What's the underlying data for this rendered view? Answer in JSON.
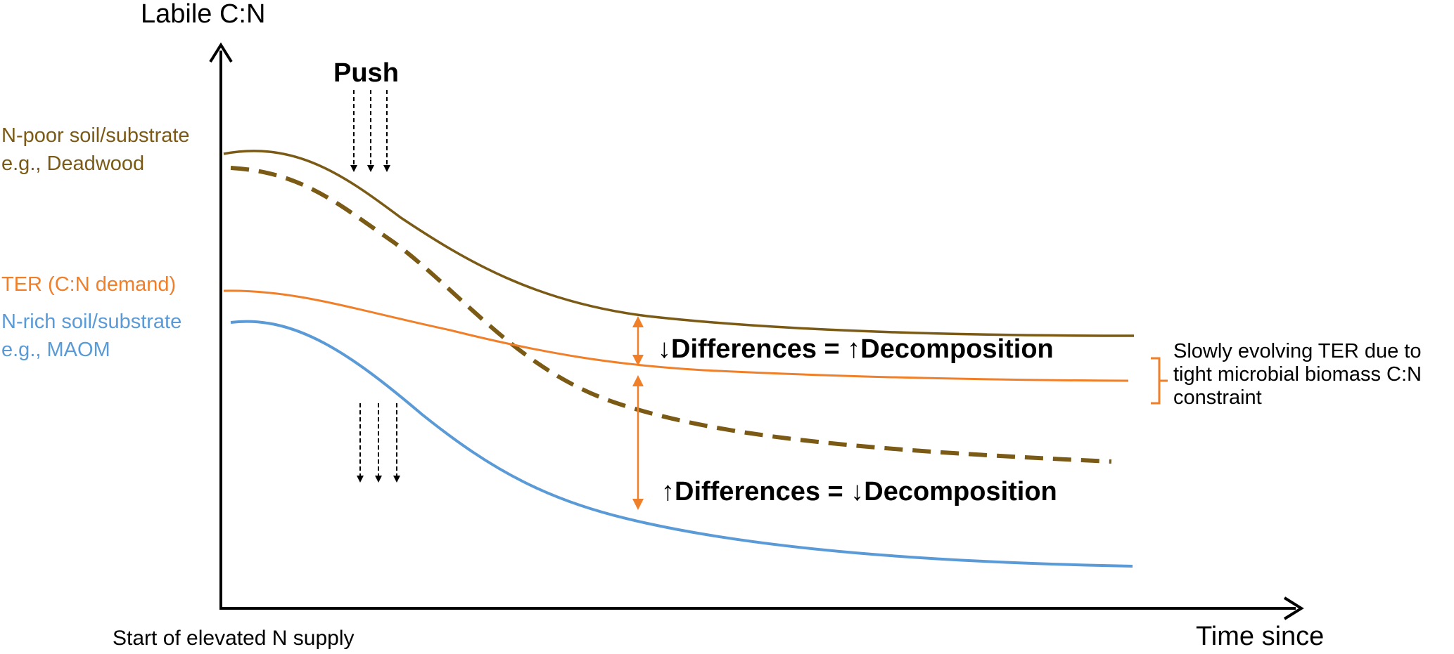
{
  "y_axis_label": "Labile C:N",
  "x_axis_label": "Time since",
  "x_origin_label": "Start of elevated N supply",
  "push_label": "Push",
  "curves": [
    {
      "line1": "N-poor soil/substrate",
      "line2": "e.g., Deadwood",
      "color": "#7a5a14"
    },
    {
      "line1": "TER (C:N demand)",
      "color": "#f07f2a"
    },
    {
      "line1": "N-rich soil/substrate",
      "line2": "e.g., MAOM",
      "color": "#5a9ad6"
    }
  ],
  "annotations": {
    "upper": {
      "arrow_left": "↓",
      "text_a": "Differences = ",
      "arrow_mid": "↑",
      "text_b": "Decomposition"
    },
    "lower": {
      "arrow_left": "↑",
      "text_a": "Differences = ",
      "arrow_mid": "↓",
      "text_b": "Decomposition"
    }
  },
  "ter_note": {
    "line1": "Slowly evolving TER due to",
    "line2": "tight microbial biomass C:N",
    "line3": "constraint"
  },
  "colors": {
    "axis": "#000000",
    "brown": "#7a5a14",
    "orange": "#f07f2a",
    "blue": "#5a9ad6"
  }
}
